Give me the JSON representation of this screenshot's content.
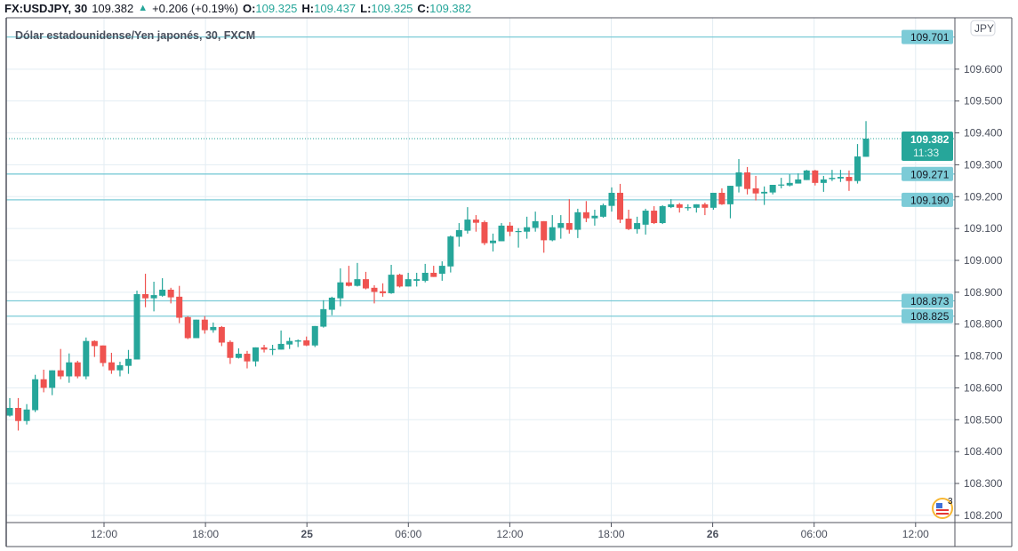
{
  "legend": {
    "symbol": "FX:USDJPY, 30",
    "last": "109.382",
    "change": "+0.206 (+0.19%)",
    "o_label": "O:",
    "o": "109.325",
    "h_label": "H:",
    "h": "109.437",
    "l_label": "L:",
    "l": "109.325",
    "c_label": "C:",
    "c": "109.382"
  },
  "title": "Dólar estadounidense/Yen japonés, 30, FXCM",
  "currency_badge": "JPY",
  "price_axis": [
    "109.600",
    "109.500",
    "109.400",
    "109.300",
    "109.200",
    "109.100",
    "109.000",
    "108.900",
    "108.800",
    "108.700",
    "108.600",
    "108.500",
    "108.400",
    "108.300",
    "108.200"
  ],
  "time_axis": [
    {
      "label": "12:00",
      "bold": false
    },
    {
      "label": "18:00",
      "bold": false
    },
    {
      "label": "25",
      "bold": true
    },
    {
      "label": "06:00",
      "bold": false
    },
    {
      "label": "12:00",
      "bold": false
    },
    {
      "label": "18:00",
      "bold": false
    },
    {
      "label": "26",
      "bold": true
    },
    {
      "label": "06:00",
      "bold": false
    },
    {
      "label": "12:00",
      "bold": false
    }
  ],
  "horizontal_lines": [
    {
      "price": 109.701,
      "label": "109.701"
    },
    {
      "price": 109.271,
      "label": "109.271"
    },
    {
      "price": 109.19,
      "label": "109.190"
    },
    {
      "price": 108.873,
      "label": "108.873"
    },
    {
      "price": 108.825,
      "label": "108.825"
    }
  ],
  "current_price": {
    "price": 109.382,
    "label": "109.382",
    "countdown": "11:33"
  },
  "events_badge": {
    "icon": "us-flag-icon",
    "count": "3"
  },
  "colors": {
    "up": "#26a69a",
    "down": "#ef5350",
    "hline": "#7ccbd7",
    "grid": "#e3edf3"
  },
  "chart_data": {
    "type": "candlestick",
    "symbol": "USDJPY",
    "interval": "30",
    "ylim": [
      108.2,
      109.6
    ],
    "candles": [
      [
        108.513,
        108.568,
        108.51,
        108.537
      ],
      [
        108.537,
        108.568,
        108.466,
        108.496
      ],
      [
        108.496,
        108.549,
        108.485,
        108.532
      ],
      [
        108.53,
        108.641,
        108.524,
        108.627
      ],
      [
        108.627,
        108.657,
        108.586,
        108.6
      ],
      [
        108.6,
        108.655,
        108.577,
        108.655
      ],
      [
        108.655,
        108.722,
        108.627,
        108.636
      ],
      [
        108.636,
        108.708,
        108.616,
        108.68
      ],
      [
        108.68,
        108.685,
        108.63,
        108.636
      ],
      [
        108.636,
        108.758,
        108.627,
        108.747
      ],
      [
        108.747,
        108.749,
        108.697,
        108.731
      ],
      [
        108.733,
        108.733,
        108.667,
        108.678
      ],
      [
        108.68,
        108.71,
        108.644,
        108.655
      ],
      [
        108.655,
        108.682,
        108.636,
        108.671
      ],
      [
        108.669,
        108.719,
        108.644,
        108.691
      ],
      [
        108.689,
        108.905,
        108.689,
        108.894
      ],
      [
        108.894,
        108.958,
        108.853,
        108.881
      ],
      [
        108.881,
        108.933,
        108.84,
        108.891
      ],
      [
        108.889,
        108.944,
        108.886,
        108.908
      ],
      [
        108.908,
        108.914,
        108.865,
        108.884
      ],
      [
        108.886,
        108.92,
        108.803,
        108.82
      ],
      [
        108.822,
        108.825,
        108.753,
        108.756
      ],
      [
        108.756,
        108.814,
        108.756,
        108.814
      ],
      [
        108.814,
        108.825,
        108.77,
        108.781
      ],
      [
        108.781,
        108.805,
        108.773,
        108.791
      ],
      [
        108.791,
        108.794,
        108.731,
        108.742
      ],
      [
        108.744,
        108.749,
        108.675,
        108.694
      ],
      [
        108.694,
        108.724,
        108.692,
        108.707
      ],
      [
        108.707,
        108.716,
        108.661,
        108.683
      ],
      [
        108.683,
        108.727,
        108.667,
        108.727
      ],
      [
        108.727,
        108.735,
        108.711,
        108.72
      ],
      [
        108.72,
        108.735,
        108.703,
        108.722
      ],
      [
        108.72,
        108.78,
        108.72,
        108.738
      ],
      [
        108.736,
        108.758,
        108.722,
        108.747
      ],
      [
        108.745,
        108.752,
        108.728,
        108.749
      ],
      [
        108.749,
        108.761,
        108.731,
        108.733
      ],
      [
        108.733,
        108.794,
        108.728,
        108.794
      ],
      [
        108.792,
        108.875,
        108.789,
        108.847
      ],
      [
        108.845,
        108.886,
        108.828,
        108.883
      ],
      [
        108.881,
        108.975,
        108.856,
        108.931
      ],
      [
        108.931,
        108.983,
        108.918,
        108.92
      ],
      [
        108.92,
        108.992,
        108.918,
        108.941
      ],
      [
        108.941,
        108.964,
        108.909,
        108.912
      ],
      [
        108.914,
        108.922,
        108.865,
        108.901
      ],
      [
        108.903,
        108.928,
        108.886,
        108.897
      ],
      [
        108.897,
        108.986,
        108.895,
        108.955
      ],
      [
        108.955,
        108.958,
        108.915,
        108.918
      ],
      [
        108.918,
        108.961,
        108.918,
        108.941
      ],
      [
        108.936,
        108.961,
        108.918,
        108.941
      ],
      [
        108.936,
        108.989,
        108.931,
        108.961
      ],
      [
        108.961,
        108.983,
        108.948,
        108.948
      ],
      [
        108.958,
        108.997,
        108.936,
        108.983
      ],
      [
        108.981,
        109.078,
        108.962,
        109.075
      ],
      [
        109.074,
        109.117,
        109.043,
        109.095
      ],
      [
        109.093,
        109.167,
        109.084,
        109.128
      ],
      [
        109.128,
        109.142,
        109.09,
        109.118
      ],
      [
        109.12,
        109.125,
        109.048,
        109.054
      ],
      [
        109.054,
        109.084,
        109.028,
        109.062
      ],
      [
        109.06,
        109.117,
        109.06,
        109.109
      ],
      [
        109.109,
        109.12,
        109.076,
        109.09
      ],
      [
        109.09,
        109.101,
        109.04,
        109.092
      ],
      [
        109.09,
        109.137,
        109.068,
        109.104
      ],
      [
        109.102,
        109.153,
        109.09,
        109.123
      ],
      [
        109.123,
        109.123,
        109.024,
        109.063
      ],
      [
        109.063,
        109.142,
        109.06,
        109.104
      ],
      [
        109.102,
        109.142,
        109.068,
        109.117
      ],
      [
        109.117,
        109.192,
        109.084,
        109.096
      ],
      [
        109.096,
        109.162,
        109.07,
        109.151
      ],
      [
        109.151,
        109.186,
        109.12,
        109.132
      ],
      [
        109.132,
        109.159,
        109.109,
        109.14
      ],
      [
        109.137,
        109.178,
        109.134,
        109.173
      ],
      [
        109.171,
        109.229,
        109.153,
        109.212
      ],
      [
        109.212,
        109.24,
        109.117,
        109.128
      ],
      [
        109.131,
        109.159,
        109.095,
        109.098
      ],
      [
        109.098,
        109.137,
        109.084,
        109.117
      ],
      [
        109.112,
        109.162,
        109.081,
        109.156
      ],
      [
        109.156,
        109.17,
        109.114,
        109.117
      ],
      [
        109.117,
        109.173,
        109.114,
        109.17
      ],
      [
        109.167,
        109.192,
        109.164,
        109.176
      ],
      [
        109.176,
        109.18,
        109.15,
        109.165
      ],
      [
        109.165,
        109.176,
        109.156,
        109.167
      ],
      [
        109.165,
        109.176,
        109.15,
        109.176
      ],
      [
        109.176,
        109.181,
        109.142,
        109.165
      ],
      [
        109.165,
        109.212,
        109.159,
        109.212
      ],
      [
        109.212,
        109.226,
        109.174,
        109.176
      ],
      [
        109.176,
        109.234,
        109.132,
        109.234
      ],
      [
        109.232,
        109.318,
        109.213,
        109.276
      ],
      [
        109.276,
        109.293,
        109.207,
        109.224
      ],
      [
        109.226,
        109.265,
        109.188,
        109.21
      ],
      [
        109.21,
        109.232,
        109.174,
        109.215
      ],
      [
        109.213,
        109.237,
        109.207,
        109.237
      ],
      [
        109.235,
        109.259,
        109.226,
        109.238
      ],
      [
        109.235,
        109.27,
        109.232,
        109.243
      ],
      [
        109.241,
        109.273,
        109.241,
        109.254
      ],
      [
        109.252,
        109.284,
        109.252,
        109.282
      ],
      [
        109.282,
        109.284,
        109.235,
        109.243
      ],
      [
        109.243,
        109.265,
        109.215,
        109.254
      ],
      [
        109.255,
        109.284,
        109.249,
        109.259
      ],
      [
        109.257,
        109.284,
        109.246,
        109.262
      ],
      [
        109.262,
        109.282,
        109.218,
        109.249
      ],
      [
        109.249,
        109.365,
        109.241,
        109.326
      ],
      [
        109.325,
        109.437,
        109.325,
        109.382
      ]
    ]
  }
}
